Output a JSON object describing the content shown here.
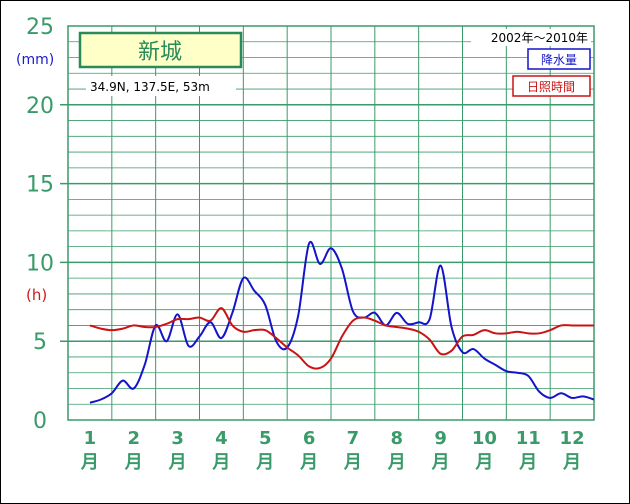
{
  "chart_data": {
    "type": "line",
    "station": "新城",
    "location": "34.9N,  137.5E,  53m",
    "period": "2002年～2010年",
    "y_unit_left": "(mm)",
    "y_unit_right": "(h)",
    "ylim": [
      0,
      25
    ],
    "yticks": [
      "0",
      "5",
      "10",
      "15",
      "20",
      "25"
    ],
    "months": [
      {
        "num": "1",
        "unit": "月"
      },
      {
        "num": "2",
        "unit": "月"
      },
      {
        "num": "3",
        "unit": "月"
      },
      {
        "num": "4",
        "unit": "月"
      },
      {
        "num": "5",
        "unit": "月"
      },
      {
        "num": "6",
        "unit": "月"
      },
      {
        "num": "7",
        "unit": "月"
      },
      {
        "num": "8",
        "unit": "月"
      },
      {
        "num": "9",
        "unit": "月"
      },
      {
        "num": "10",
        "unit": "月"
      },
      {
        "num": "11",
        "unit": "月"
      },
      {
        "num": "12",
        "unit": "月"
      }
    ],
    "grid": true,
    "legend_placement": "top-right",
    "series": [
      {
        "name": "降水量",
        "color": "#1414c8",
        "x": [
          1.0,
          1.25,
          1.5,
          1.75,
          2.0,
          2.25,
          2.5,
          2.75,
          3.0,
          3.25,
          3.5,
          3.75,
          4.0,
          4.25,
          4.5,
          4.75,
          5.0,
          5.25,
          5.5,
          5.75,
          6.0,
          6.25,
          6.5,
          6.75,
          7.0,
          7.25,
          7.5,
          7.75,
          8.0,
          8.25,
          8.5,
          8.75,
          9.0,
          9.25,
          9.5,
          9.75,
          10.0,
          10.25,
          10.5,
          10.75,
          11.0,
          11.25,
          11.5,
          11.75,
          12.0,
          12.25,
          12.5
        ],
        "values": [
          1.1,
          1.3,
          1.7,
          2.5,
          2.0,
          3.5,
          6.0,
          5.0,
          6.7,
          4.7,
          5.3,
          6.2,
          5.2,
          6.8,
          9.0,
          8.2,
          7.3,
          5.0,
          4.6,
          6.6,
          11.2,
          9.9,
          10.9,
          9.6,
          6.9,
          6.5,
          6.8,
          6.0,
          6.8,
          6.1,
          6.2,
          6.4,
          9.8,
          5.9,
          4.3,
          4.5,
          3.9,
          3.5,
          3.1,
          3.0,
          2.8,
          1.8,
          1.4,
          1.7,
          1.4,
          1.5,
          1.3
        ]
      },
      {
        "name": "日照時間",
        "color": "#c81414",
        "x": [
          1.0,
          1.25,
          1.5,
          1.75,
          2.0,
          2.25,
          2.5,
          2.75,
          3.0,
          3.25,
          3.5,
          3.75,
          4.0,
          4.25,
          4.5,
          4.75,
          5.0,
          5.25,
          5.5,
          5.75,
          6.0,
          6.25,
          6.5,
          6.75,
          7.0,
          7.25,
          7.5,
          7.75,
          8.0,
          8.25,
          8.5,
          8.75,
          9.0,
          9.25,
          9.5,
          9.75,
          10.0,
          10.25,
          10.5,
          10.75,
          11.0,
          11.25,
          11.5,
          11.75,
          12.0,
          12.25,
          12.5
        ],
        "values": [
          6.0,
          5.8,
          5.7,
          5.8,
          6.0,
          5.9,
          5.9,
          6.1,
          6.4,
          6.4,
          6.5,
          6.3,
          7.1,
          6.0,
          5.6,
          5.7,
          5.7,
          5.2,
          4.6,
          4.1,
          3.4,
          3.3,
          3.9,
          5.3,
          6.3,
          6.5,
          6.3,
          6.0,
          5.9,
          5.8,
          5.6,
          5.1,
          4.2,
          4.4,
          5.3,
          5.4,
          5.7,
          5.5,
          5.5,
          5.6,
          5.5,
          5.5,
          5.7,
          6.0,
          6.0,
          6.0,
          6.0
        ]
      }
    ]
  }
}
